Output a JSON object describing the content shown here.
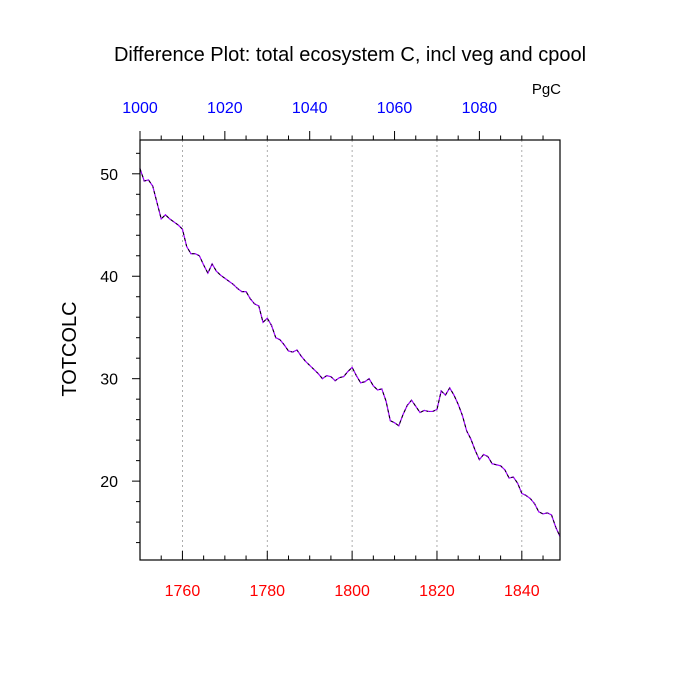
{
  "chart_data": {
    "type": "line",
    "title": "Difference Plot: total ecosystem C, incl veg and cpool",
    "ylabel": "TOTCOLC",
    "top_axis_unit": "PgC",
    "xlim": [
      1750,
      1849
    ],
    "ylim": [
      12.3,
      53.3
    ],
    "top_axis_range": [
      1000,
      1099
    ],
    "bottom_ticks": [
      "1760",
      "1780",
      "1800",
      "1820",
      "1840"
    ],
    "bottom_tick_values": [
      1760,
      1780,
      1800,
      1820,
      1840
    ],
    "top_ticks": [
      "1000",
      "1020",
      "1040",
      "1060",
      "1080"
    ],
    "top_tick_values": [
      1000,
      1020,
      1040,
      1060,
      1080
    ],
    "left_ticks": [
      "20",
      "30",
      "40",
      "50"
    ],
    "left_tick_values": [
      20,
      30,
      40,
      50
    ],
    "grid": "vertical dotted at bottom ticks",
    "colors": {
      "line_dash": "#000000",
      "line_under": "#a000ff",
      "bottom_tick_labels": "#ff0000",
      "top_tick_labels": "#0000ff",
      "grid": "#999999"
    },
    "series": [
      {
        "x": [
          1750,
          1751,
          1752,
          1753,
          1754,
          1755,
          1756,
          1757,
          1758,
          1759,
          1760,
          1761,
          1762,
          1763,
          1764,
          1765,
          1766,
          1767,
          1768,
          1769,
          1770,
          1771,
          1772,
          1773,
          1774,
          1775,
          1776,
          1777,
          1778,
          1779,
          1780,
          1781,
          1782,
          1783,
          1784,
          1785,
          1786,
          1787,
          1788,
          1789,
          1790,
          1791,
          1792,
          1793,
          1794,
          1795,
          1796,
          1797,
          1798,
          1799,
          1800,
          1801,
          1802,
          1803,
          1804,
          1805,
          1806,
          1807,
          1808,
          1809,
          1810,
          1811,
          1812,
          1813,
          1814,
          1815,
          1816,
          1817,
          1818,
          1819,
          1820,
          1821,
          1822,
          1823,
          1824,
          1825,
          1826,
          1827,
          1828,
          1829,
          1830,
          1831,
          1832,
          1833,
          1834,
          1835,
          1836,
          1837,
          1838,
          1839,
          1840,
          1841,
          1842,
          1843,
          1844,
          1845,
          1846,
          1847,
          1848,
          1849
        ],
        "y": [
          50.5,
          49.3,
          49.4,
          48.8,
          47.2,
          45.6,
          46.0,
          45.6,
          45.3,
          45.0,
          44.6,
          42.9,
          42.2,
          42.2,
          42.0,
          41.1,
          40.3,
          41.2,
          40.5,
          40.1,
          39.8,
          39.5,
          39.2,
          38.8,
          38.5,
          38.5,
          37.8,
          37.3,
          37.1,
          35.5,
          35.9,
          35.2,
          34.0,
          33.8,
          33.3,
          32.7,
          32.6,
          32.8,
          32.2,
          31.7,
          31.3,
          30.9,
          30.5,
          30.0,
          30.3,
          30.2,
          29.8,
          30.1,
          30.2,
          30.7,
          31.1,
          30.3,
          29.6,
          29.7,
          30.0,
          29.3,
          28.9,
          29.0,
          27.8,
          25.9,
          25.7,
          25.4,
          26.5,
          27.4,
          27.9,
          27.3,
          26.7,
          26.9,
          26.8,
          26.8,
          27.0,
          28.8,
          28.4,
          29.1,
          28.4,
          27.5,
          26.4,
          24.9,
          24.1,
          23.0,
          22.1,
          22.6,
          22.4,
          21.7,
          21.6,
          21.5,
          21.1,
          20.3,
          20.4,
          19.8,
          18.8,
          18.6,
          18.3,
          17.8,
          17.0,
          16.8,
          16.9,
          16.7,
          15.5,
          14.6
        ]
      }
    ]
  }
}
